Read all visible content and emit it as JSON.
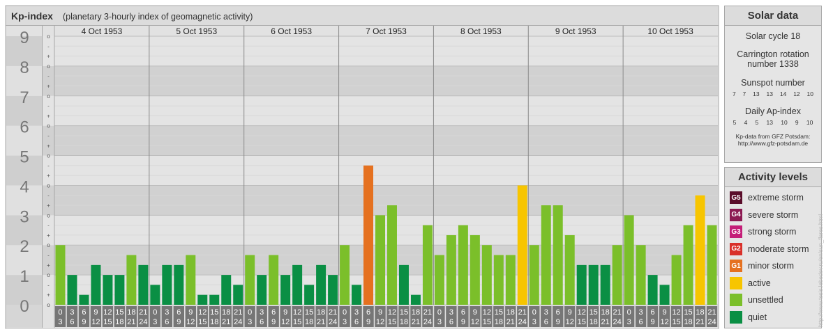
{
  "header": {
    "title": "Kp-index",
    "subtitle": "(planetary 3-hourly index of geomagnetic activity)"
  },
  "chart_data": {
    "type": "bar",
    "title": "Kp-index",
    "subtitle": "(planetary 3-hourly index of geomagnetic activity)",
    "ylim": [
      0,
      9
    ],
    "y_major_ticks": [
      "0",
      "1",
      "2",
      "3",
      "4",
      "5",
      "6",
      "7",
      "8",
      "9"
    ],
    "y_minor_ticks": [
      "+",
      "-",
      "o"
    ],
    "hour_labels": [
      [
        "0",
        "3"
      ],
      [
        "3",
        "6"
      ],
      [
        "6",
        "9"
      ],
      [
        "9",
        "12"
      ],
      [
        "12",
        "15"
      ],
      [
        "15",
        "18"
      ],
      [
        "18",
        "21"
      ],
      [
        "21",
        "24"
      ]
    ],
    "days": [
      {
        "date": "4 Oct 1953",
        "values": [
          2.0,
          1.0,
          0.333,
          1.333,
          1.0,
          1.0,
          1.667,
          1.333
        ]
      },
      {
        "date": "5 Oct 1953",
        "values": [
          0.667,
          1.333,
          1.333,
          1.667,
          0.333,
          0.333,
          1.0,
          0.667
        ]
      },
      {
        "date": "6 Oct 1953",
        "values": [
          1.667,
          1.0,
          1.667,
          1.0,
          1.333,
          0.667,
          1.333,
          1.0
        ]
      },
      {
        "date": "7 Oct 1953",
        "values": [
          2.0,
          0.667,
          4.667,
          3.0,
          3.333,
          1.333,
          0.333,
          2.667
        ]
      },
      {
        "date": "8 Oct 1953",
        "values": [
          1.667,
          2.333,
          2.667,
          2.333,
          2.0,
          1.667,
          1.667,
          4.0
        ]
      },
      {
        "date": "9 Oct 1953",
        "values": [
          2.0,
          3.333,
          3.333,
          2.333,
          1.333,
          1.333,
          1.333,
          2.0
        ]
      },
      {
        "date": "10 Oct 1953",
        "values": [
          3.0,
          2.0,
          1.0,
          0.667,
          1.667,
          2.667,
          3.667,
          2.667
        ]
      }
    ],
    "grid": true
  },
  "solar_data": {
    "title": "Solar data",
    "solar_cycle": "Solar cycle 18",
    "carrington_line1": "Carrington rotation",
    "carrington_line2": "number 1338",
    "sunspot_title": "Sunspot number",
    "sunspot_values": [
      "7",
      "7",
      "13",
      "13",
      "14",
      "12",
      "10"
    ],
    "ap_title": "Daily Ap-index",
    "ap_values": [
      "5",
      "4",
      "5",
      "13",
      "10",
      "9",
      "10"
    ],
    "source_line1": "Kp-data from GFZ Potsdam:",
    "source_line2": "http://www.gfz-potsdam.de"
  },
  "legend": {
    "title": "Activity levels",
    "items": [
      {
        "badge": "G5",
        "label": "extreme storm",
        "color": "#5a0d2a"
      },
      {
        "badge": "G4",
        "label": "severe storm",
        "color": "#8c1a52"
      },
      {
        "badge": "G3",
        "label": "strong storm",
        "color": "#c41e78"
      },
      {
        "badge": "G2",
        "label": "moderate storm",
        "color": "#d9302a"
      },
      {
        "badge": "G1",
        "label": "minor storm",
        "color": "#e57120"
      },
      {
        "badge": "",
        "label": "active",
        "color": "#f7c500"
      },
      {
        "badge": "",
        "label": "unsettled",
        "color": "#7bbf2a"
      },
      {
        "badge": "",
        "label": "quiet",
        "color": "#0a8f44"
      }
    ]
  },
  "watermark": "http://www.tesis.lebedev.ru/en/sun_flares.html"
}
